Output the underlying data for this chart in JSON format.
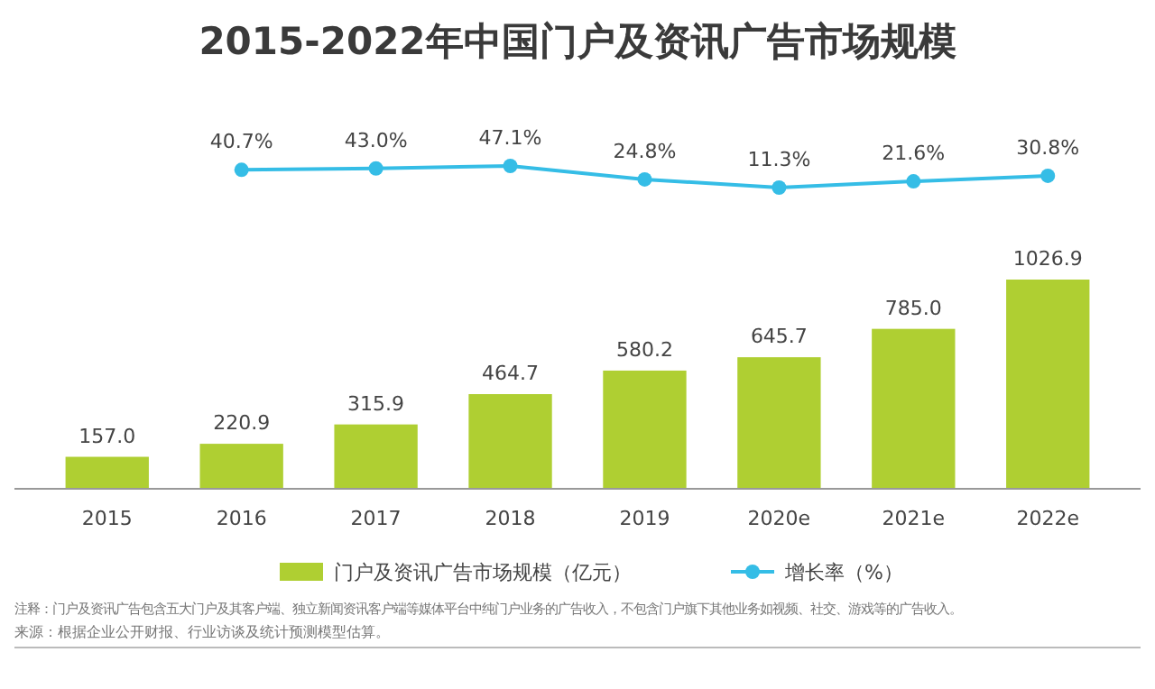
{
  "chart_data": [
    {
      "type": "line",
      "title": "2015-2022年中国门户及资讯广告市场规模",
      "categories": [
        null,
        null,
        null,
        null,
        null,
        null,
        null,
        null
      ],
      "series": [
        {
          "name": "增长率（%）",
          "color": "#35bde6",
          "values": [
            null,
            40.7,
            43.0,
            47.1,
            24.8,
            11.3,
            21.6,
            30.8
          ],
          "value_labels": [
            null,
            "40.7%",
            "43.0%",
            "47.1%",
            "24.8%",
            "11.3%",
            "21.6%",
            "30.8%"
          ]
        }
      ],
      "tick_labels": false,
      "legend": "bottom",
      "marker": "circle"
    },
    {
      "type": "bar",
      "categories": [
        "2015",
        "2016",
        "2017",
        "2018",
        "2019",
        "2020e",
        "2021e",
        "2022e"
      ],
      "series": [
        {
          "name": "门户及资讯广告市场规模（亿元）",
          "color": "#afcf32",
          "values": [
            157.0,
            220.9,
            315.9,
            464.7,
            580.2,
            645.7,
            785.0,
            1026.9
          ],
          "value_labels": [
            "157.0",
            "220.9",
            "315.9",
            "464.7",
            "580.2",
            "645.7",
            "785.0",
            "1026.9"
          ]
        }
      ],
      "tick_labels": "x",
      "legend": "bottom",
      "annotations": [
        "注释：门户及资讯广告包含五大门户及其客户端、独立新闻资讯客户端等媒体平台中纯门户业务的广告收入，不包含门户旗下其他业务如视频、社交、游戏等的广告收入。",
        "来源：根据企业公开财报、行业访谈及统计预测模型估算。"
      ]
    }
  ]
}
